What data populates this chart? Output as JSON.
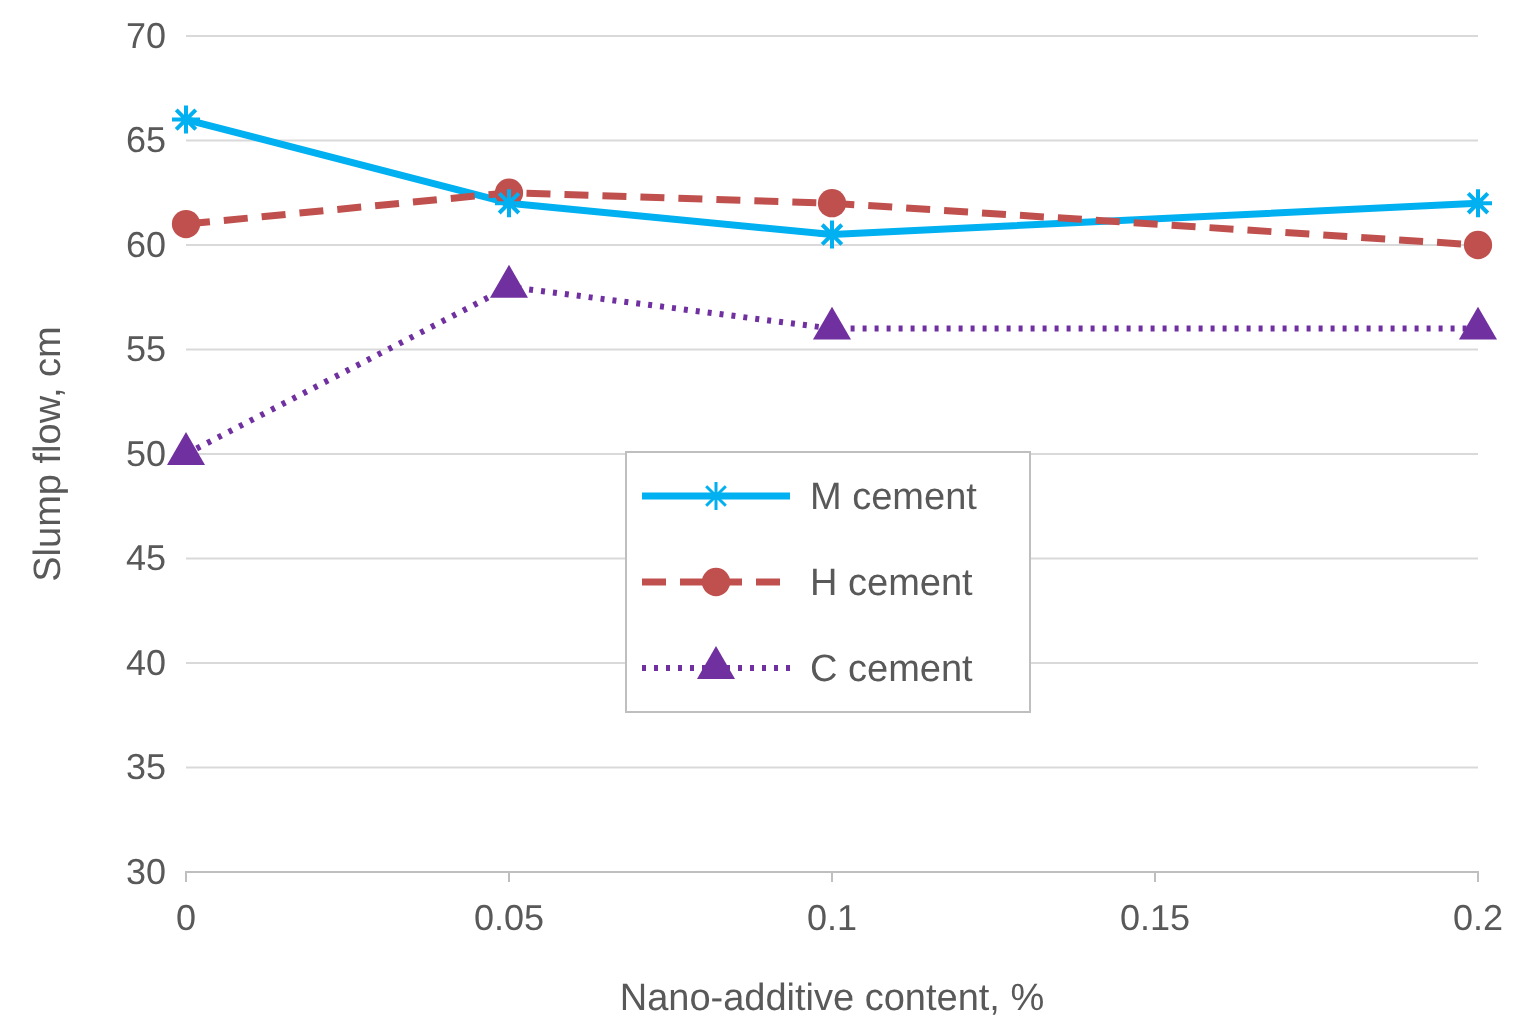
{
  "chart_data": {
    "type": "line",
    "xlabel": "Nano-additive content, %",
    "ylabel": "Slump flow, cm",
    "x": [
      0,
      0.05,
      0.1,
      0.2
    ],
    "xlim": [
      0,
      0.2
    ],
    "xticks": [
      0,
      0.05,
      0.1,
      0.15,
      0.2
    ],
    "ylim": [
      30,
      70
    ],
    "yticks": [
      30,
      35,
      40,
      45,
      50,
      55,
      60,
      65,
      70
    ],
    "grid": "y",
    "legend": "center",
    "series": [
      {
        "name": "M cement",
        "color": "#00b0f0",
        "values": [
          66,
          62,
          60.5,
          62
        ],
        "marker": "cross",
        "line_style": "solid"
      },
      {
        "name": "H cement",
        "color": "#c0504d",
        "values": [
          61,
          62.5,
          62,
          60
        ],
        "marker": "circle",
        "line_style": "dashed"
      },
      {
        "name": "C cement",
        "color": "#7030a0",
        "values": [
          50,
          58,
          56,
          56
        ],
        "marker": "triangle",
        "line_style": "dotted"
      }
    ]
  }
}
